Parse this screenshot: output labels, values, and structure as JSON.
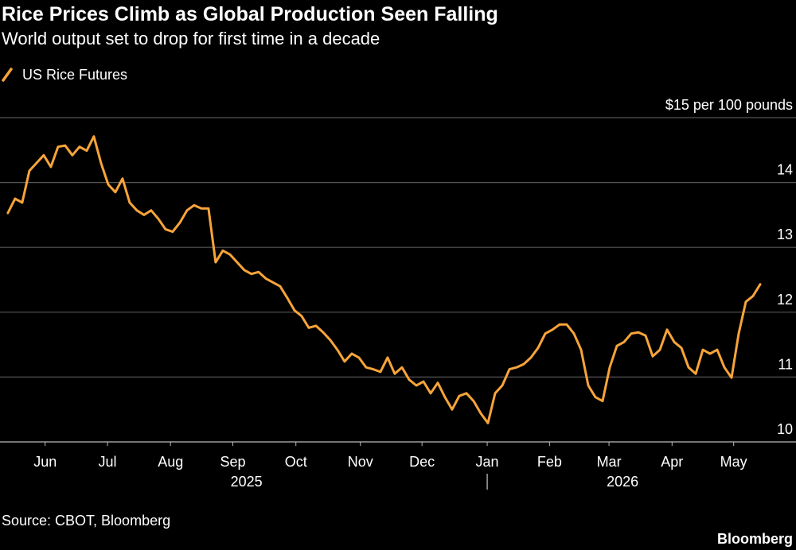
{
  "chart_data": {
    "type": "line",
    "title": "Rice Prices Climb as Global Production Seen Falling",
    "subtitle": "World output set to drop for first time in a decade",
    "source": "Source: CBOT, Bloomberg",
    "brand": "Bloomberg",
    "grid": true,
    "legend_position": "top-left",
    "series": [
      {
        "name": "US Rice Futures",
        "color": "#f7a439",
        "values": [
          13.53,
          13.75,
          13.69,
          14.18,
          14.3,
          14.42,
          14.24,
          14.55,
          14.57,
          14.42,
          14.55,
          14.49,
          14.71,
          14.3,
          13.97,
          13.85,
          14.06,
          13.69,
          13.57,
          13.5,
          13.57,
          13.44,
          13.28,
          13.24,
          13.38,
          13.57,
          13.65,
          13.6,
          13.6,
          12.77,
          12.95,
          12.89,
          12.77,
          12.65,
          12.59,
          12.62,
          12.52,
          12.46,
          12.4,
          12.22,
          12.03,
          11.94,
          11.76,
          11.79,
          11.69,
          11.57,
          11.42,
          11.24,
          11.36,
          11.3,
          11.15,
          11.12,
          11.08,
          11.3,
          11.05,
          11.15,
          10.96,
          10.87,
          10.93,
          10.75,
          10.91,
          10.69,
          10.5,
          10.71,
          10.75,
          10.63,
          10.44,
          10.29,
          10.75,
          10.87,
          11.12,
          11.15,
          11.2,
          11.3,
          11.45,
          11.67,
          11.73,
          11.81,
          11.81,
          11.67,
          11.42,
          10.87,
          10.69,
          10.63,
          11.15,
          11.48,
          11.54,
          11.67,
          11.69,
          11.64,
          11.32,
          11.42,
          11.73,
          11.54,
          11.45,
          11.15,
          11.05,
          11.42,
          11.36,
          11.42,
          11.15,
          10.99,
          11.67,
          12.16,
          12.25,
          12.43
        ]
      }
    ],
    "xlim": [
      -1.1,
      110
    ],
    "xticks": [
      {
        "value": 5.2,
        "label": "Jun"
      },
      {
        "value": 13.9,
        "label": "Jul"
      },
      {
        "value": 22.7,
        "label": "Aug"
      },
      {
        "value": 31.4,
        "label": "Sep"
      },
      {
        "value": 40.2,
        "label": "Oct"
      },
      {
        "value": 49.2,
        "label": "Nov"
      },
      {
        "value": 57.8,
        "label": "Dec"
      },
      {
        "value": 66.9,
        "label": "Jan"
      },
      {
        "value": 75.6,
        "label": "Feb"
      },
      {
        "value": 83.9,
        "label": "Mar"
      },
      {
        "value": 92.7,
        "label": "Apr"
      },
      {
        "value": 101.3,
        "label": "May"
      }
    ],
    "year_labels": [
      {
        "value": 33.3,
        "label": "2025"
      },
      {
        "value": 85.8,
        "label": "2026"
      }
    ],
    "year_divider": 66.9,
    "ylim": [
      10,
      15
    ],
    "yticks": [
      10,
      11,
      12,
      13,
      14,
      {
        "value": 15,
        "label": "$15 per 100 pounds"
      }
    ]
  }
}
